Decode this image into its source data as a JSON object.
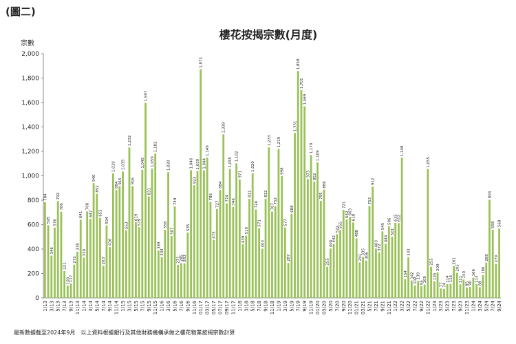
{
  "page_label": "(圖二)",
  "footnote": "最新數據截至2024年9月　以上資料根據銀行及其他財務機構承做之樓花物業按揭宗數計算",
  "chart_data": {
    "type": "bar",
    "title": "樓花按揭宗數(月度)",
    "y_label": "宗數",
    "color": "#9bc25a",
    "grid": false,
    "ylim": [
      0,
      2000
    ],
    "yticks": [
      0,
      200,
      400,
      600,
      800,
      {
        "value": 1000,
        "label": "1,000"
      },
      {
        "value": 1200,
        "label": "1,200"
      },
      {
        "value": 1400,
        "label": "1,400"
      },
      {
        "value": 1600,
        "label": "1,600"
      },
      {
        "value": 1800,
        "label": "1,800"
      },
      {
        "value": 2000,
        "label": "2,000"
      }
    ],
    "categories": [
      "1/13",
      null,
      "3/13",
      null,
      "5/13",
      null,
      "7/13",
      null,
      "9/13",
      null,
      "11/13",
      null,
      "1/14",
      null,
      "3/14",
      null,
      "5/14",
      null,
      "7/14",
      null,
      "9/14",
      null,
      "11/14",
      null,
      "1/15",
      null,
      "3/15",
      null,
      "5/15",
      null,
      "7/15",
      null,
      "9/15",
      null,
      "11/15",
      null,
      "1/16",
      null,
      "3/16",
      null,
      "5/16",
      null,
      "7/16",
      null,
      "9/16",
      null,
      "11/16",
      null,
      "01/17",
      null,
      "03/17",
      null,
      "05/17",
      null,
      "07/17",
      null,
      "09/17",
      null,
      "11/17",
      null,
      "1/18",
      null,
      "3/18",
      null,
      "5/18",
      null,
      "7/18",
      null,
      "9/18",
      null,
      "11/18",
      null,
      "1/19",
      null,
      "3/19",
      null,
      "5/19",
      null,
      "7/19",
      null,
      "9/19",
      null,
      "11/19",
      null,
      "01/20",
      null,
      "03/20",
      null,
      "5/20",
      null,
      "7/20",
      null,
      "9/20",
      null,
      "11/20",
      null,
      "01/21",
      null,
      "03/21",
      null,
      "5/21",
      null,
      "7/21",
      null,
      "9/21",
      null,
      "11/21",
      null,
      "1/22",
      null,
      "3/22",
      null,
      "5/22",
      null,
      "7/22",
      null,
      "9/22",
      null,
      "11/22",
      null,
      "1/23",
      null,
      "3/23",
      null,
      "5/23",
      null,
      "7/23",
      null,
      "9/23",
      null,
      "11/23",
      null,
      "1/24",
      null,
      "3/24",
      null,
      "5/24",
      null,
      "7/24",
      null,
      "9/24"
    ],
    "values": [
      784,
      595,
      346,
      576,
      792,
      706,
      221,
      100,
      117,
      272,
      378,
      641,
      330,
      708,
      647,
      940,
      852,
      655,
      263,
      594,
      416,
      1019,
      884,
      915,
      1035,
      553,
      1232,
      916,
      619,
      579,
      1049,
      1597,
      831,
      1059,
      1182,
      389,
      334,
      558,
      1030,
      507,
      749,
      271,
      285,
      283,
      535,
      1046,
      923,
      1039,
      1872,
      1044,
      1149,
      786,
      475,
      727,
      884,
      1339,
      774,
      1055,
      746,
      1102,
      971,
      439,
      510,
      811,
      1020,
      724,
      571,
      403,
      812,
      1233,
      707,
      752,
      1219,
      998,
      577,
      287,
      688,
      1351,
      1858,
      1701,
      1569,
      973,
      1170,
      952,
      1109,
      795,
      886,
      255,
      404,
      442,
      522,
      555,
      721,
      642,
      663,
      618,
      488,
      291,
      335,
      306,
      753,
      912,
      403,
      372,
      545,
      444,
      586,
      501,
      615,
      612,
      1148,
      154,
      333,
      142,
      102,
      139,
      95,
      109,
      1055,
      255,
      135,
      209,
      77,
      74,
      114,
      116,
      261,
      205,
      111,
      150,
      85,
      90,
      166,
      113,
      88,
      186,
      289,
      804,
      558,
      279,
      568
    ],
    "value_labels": [
      "784",
      "595",
      "346",
      "576",
      "792",
      "706",
      "221",
      "100",
      "117",
      "272",
      "378",
      "641",
      "330",
      "708",
      "647",
      "940",
      "852",
      "655",
      "263",
      "594",
      "416",
      "1,019",
      "884",
      "915",
      "1,035",
      "553",
      "1,232",
      "916",
      "619",
      "579",
      "1,049",
      "1,597",
      "831",
      "1,059",
      "1,182",
      "389",
      "334",
      "558",
      "1,030",
      "507",
      "749",
      "271",
      "285",
      "283",
      "535",
      "1,046",
      "923",
      "1,039",
      "1,872",
      "1,044",
      "1,149",
      "786",
      "475",
      "727",
      "884",
      "1,339",
      "774",
      "1,055",
      "746",
      "1,102",
      "971",
      "439",
      "510",
      "811",
      "1,020",
      "724",
      "571",
      "403",
      "812",
      "1,233",
      "707",
      "752",
      "1,219",
      "998",
      "577",
      "287",
      "688",
      "1,351",
      "1,858",
      "1,701",
      "1,569",
      "973",
      "1,170",
      "952",
      "1,109",
      "795",
      "886",
      "255",
      "404",
      "442",
      "522",
      "555",
      "721",
      "642",
      "663",
      "618",
      "488",
      "291",
      "335",
      "306",
      "753",
      "912",
      "403",
      "372",
      "545",
      "444",
      "586",
      "501",
      "615",
      "612",
      "1,148",
      "154",
      "333",
      "142",
      "102",
      "139",
      "95",
      "109",
      "1,055",
      "255",
      "135",
      "209",
      "77",
      "74",
      "114",
      "116",
      "261",
      "205",
      "111",
      "150",
      "85",
      "90",
      "166",
      "113",
      "88",
      "186",
      "289",
      "804",
      "558",
      "279",
      "568"
    ]
  }
}
